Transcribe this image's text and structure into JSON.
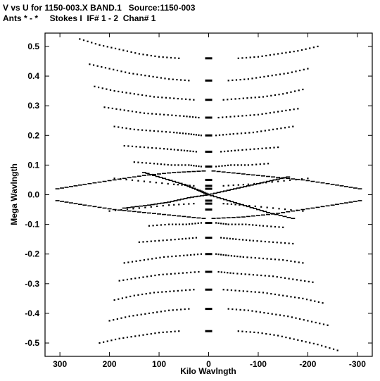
{
  "header": {
    "line1": "V vs U for 1150-003.X BAND.1   Source:1150-003",
    "line2": "Ants * - *     Stokes I  IF# 1 - 2  Chan# 1"
  },
  "chart_data": {
    "type": "scatter",
    "title": "V vs U for 1150-003.X BAND.1   Source:1150-003",
    "subtitle": "Ants * - *     Stokes I  IF# 1 - 2  Chan# 1",
    "xlabel": "Kilo Wavlngth",
    "ylabel": "Mega Wavlngth",
    "xlim": [
      330,
      -330
    ],
    "ylim": [
      -0.545,
      0.545
    ],
    "x_reversed": true,
    "x_ticks": [
      300,
      200,
      100,
      0,
      -100,
      -200,
      -300
    ],
    "x_tick_labels": [
      "300",
      "200",
      "100",
      "0",
      "-100",
      "-200",
      "-300"
    ],
    "y_ticks": [
      0.5,
      0.4,
      0.3,
      0.2,
      0.1,
      0.0,
      -0.1,
      -0.2,
      -0.3,
      -0.4,
      -0.5
    ],
    "y_tick_labels": [
      "0.5",
      "0.4",
      "0.3",
      "0.2",
      "0.1",
      "0.0",
      "-0.1",
      "-0.2",
      "-0.3",
      "-0.4",
      "-0.5"
    ],
    "grid": false,
    "marker_color": "#000000",
    "uv_tracks": {
      "wing_tracks": [
        {
          "x": [
            260,
            220,
            180,
            140,
            100,
            60
          ],
          "y": [
            0.525,
            0.505,
            0.49,
            0.475,
            0.465,
            0.46
          ]
        },
        {
          "x": [
            -60,
            -100,
            -140,
            -180,
            -220
          ],
          "y": [
            0.46,
            0.465,
            0.475,
            0.485,
            0.5
          ]
        },
        {
          "x": [
            240,
            200,
            160,
            120,
            80,
            40
          ],
          "y": [
            0.44,
            0.425,
            0.41,
            0.4,
            0.39,
            0.385
          ]
        },
        {
          "x": [
            -40,
            -80,
            -120,
            -160,
            -200
          ],
          "y": [
            0.385,
            0.39,
            0.4,
            0.41,
            0.425
          ]
        },
        {
          "x": [
            230,
            190,
            150,
            110,
            70,
            30
          ],
          "y": [
            0.365,
            0.35,
            0.34,
            0.33,
            0.325,
            0.32
          ]
        },
        {
          "x": [
            -30,
            -70,
            -110,
            -150,
            -190
          ],
          "y": [
            0.32,
            0.325,
            0.33,
            0.34,
            0.355
          ]
        },
        {
          "x": [
            210,
            170,
            130,
            90,
            50,
            20
          ],
          "y": [
            0.295,
            0.285,
            0.275,
            0.27,
            0.265,
            0.26
          ]
        },
        {
          "x": [
            -20,
            -60,
            -100,
            -140,
            -180
          ],
          "y": [
            0.26,
            0.265,
            0.27,
            0.28,
            0.29
          ]
        },
        {
          "x": [
            190,
            150,
            110,
            70,
            40,
            15
          ],
          "y": [
            0.23,
            0.22,
            0.215,
            0.21,
            0.205,
            0.2
          ]
        },
        {
          "x": [
            -15,
            -50,
            -90,
            -130,
            -170
          ],
          "y": [
            0.2,
            0.205,
            0.21,
            0.22,
            0.23
          ]
        },
        {
          "x": [
            170,
            130,
            90,
            55,
            25
          ],
          "y": [
            0.165,
            0.16,
            0.155,
            0.15,
            0.145
          ]
        },
        {
          "x": [
            -25,
            -60,
            -100,
            -140
          ],
          "y": [
            0.145,
            0.15,
            0.155,
            0.16
          ]
        },
        {
          "x": [
            150,
            110,
            75,
            40,
            15
          ],
          "y": [
            0.11,
            0.105,
            0.1,
            0.1,
            0.095
          ]
        },
        {
          "x": [
            -15,
            -45,
            -80,
            -120
          ],
          "y": [
            0.095,
            0.1,
            0.1,
            0.105
          ]
        },
        {
          "x": [
            190,
            130,
            70,
            30
          ],
          "y": [
            0.055,
            0.045,
            0.035,
            0.03
          ]
        },
        {
          "x": [
            -30,
            -80,
            -140,
            -200
          ],
          "y": [
            0.03,
            0.035,
            0.045,
            0.055
          ]
        },
        {
          "x": [
            -260,
            -220,
            -180,
            -140,
            -100,
            -60
          ],
          "y": [
            -0.525,
            -0.505,
            -0.49,
            -0.475,
            -0.465,
            -0.46
          ]
        },
        {
          "x": [
            60,
            100,
            140,
            180,
            220
          ],
          "y": [
            -0.46,
            -0.465,
            -0.475,
            -0.485,
            -0.5
          ]
        },
        {
          "x": [
            -240,
            -200,
            -160,
            -120,
            -80,
            -40
          ],
          "y": [
            -0.44,
            -0.425,
            -0.41,
            -0.4,
            -0.39,
            -0.385
          ]
        },
        {
          "x": [
            40,
            80,
            120,
            160,
            200
          ],
          "y": [
            -0.385,
            -0.39,
            -0.4,
            -0.41,
            -0.425
          ]
        },
        {
          "x": [
            -230,
            -190,
            -150,
            -110,
            -70,
            -30
          ],
          "y": [
            -0.365,
            -0.35,
            -0.34,
            -0.33,
            -0.325,
            -0.32
          ]
        },
        {
          "x": [
            30,
            70,
            110,
            150,
            190
          ],
          "y": [
            -0.32,
            -0.325,
            -0.33,
            -0.34,
            -0.355
          ]
        },
        {
          "x": [
            -210,
            -170,
            -130,
            -90,
            -50,
            -20
          ],
          "y": [
            -0.295,
            -0.285,
            -0.275,
            -0.27,
            -0.265,
            -0.26
          ]
        },
        {
          "x": [
            20,
            60,
            100,
            140,
            180
          ],
          "y": [
            -0.26,
            -0.265,
            -0.27,
            -0.28,
            -0.29
          ]
        },
        {
          "x": [
            -190,
            -150,
            -110,
            -70,
            -40,
            -15
          ],
          "y": [
            -0.23,
            -0.22,
            -0.215,
            -0.21,
            -0.205,
            -0.2
          ]
        },
        {
          "x": [
            15,
            50,
            90,
            130,
            170
          ],
          "y": [
            -0.2,
            -0.205,
            -0.21,
            -0.22,
            -0.23
          ]
        },
        {
          "x": [
            -170,
            -130,
            -90,
            -55,
            -25
          ],
          "y": [
            -0.165,
            -0.16,
            -0.155,
            -0.15,
            -0.145
          ]
        },
        {
          "x": [
            25,
            60,
            100,
            140
          ],
          "y": [
            -0.145,
            -0.15,
            -0.155,
            -0.16
          ]
        },
        {
          "x": [
            -150,
            -110,
            -75,
            -40,
            -15
          ],
          "y": [
            -0.11,
            -0.105,
            -0.1,
            -0.1,
            -0.095
          ]
        },
        {
          "x": [
            15,
            45,
            80,
            120
          ],
          "y": [
            -0.095,
            -0.1,
            -0.1,
            -0.105
          ]
        },
        {
          "x": [
            -190,
            -130,
            -70,
            -30
          ],
          "y": [
            -0.055,
            -0.045,
            -0.035,
            -0.03
          ]
        },
        {
          "x": [
            30,
            80,
            140,
            200
          ],
          "y": [
            -0.03,
            -0.035,
            -0.045,
            -0.055
          ]
        }
      ],
      "diamond_tracks": [
        {
          "x": [
            305,
            250,
            190,
            130,
            70,
            10
          ],
          "y": [
            0.02,
            0.035,
            0.05,
            0.065,
            0.075,
            0.08
          ]
        },
        {
          "x": [
            305,
            250,
            190,
            130,
            70,
            10
          ],
          "y": [
            -0.02,
            -0.035,
            -0.05,
            -0.06,
            -0.07,
            -0.08
          ]
        },
        {
          "x": [
            -10,
            -70,
            -130,
            -190,
            -250,
            -305
          ],
          "y": [
            0.08,
            0.07,
            0.06,
            0.05,
            0.035,
            0.02
          ]
        },
        {
          "x": [
            -10,
            -70,
            -130,
            -190,
            -250,
            -305
          ],
          "y": [
            -0.08,
            -0.075,
            -0.065,
            -0.05,
            -0.035,
            -0.02
          ]
        },
        {
          "x": [
            130,
            90,
            50,
            20,
            0
          ],
          "y": [
            0.075,
            0.055,
            0.035,
            0.015,
            0.0
          ]
        },
        {
          "x": [
            0,
            -40,
            -80,
            -120,
            -170
          ],
          "y": [
            0.0,
            -0.02,
            -0.04,
            -0.06,
            -0.08
          ]
        },
        {
          "x": [
            170,
            120,
            80,
            40,
            0
          ],
          "y": [
            -0.045,
            -0.035,
            -0.025,
            -0.01,
            0.0
          ]
        },
        {
          "x": [
            0,
            -40,
            -80,
            -120,
            -160
          ],
          "y": [
            0.0,
            0.015,
            0.03,
            0.045,
            0.06
          ]
        }
      ],
      "center_column": {
        "x": [
          0,
          0,
          0,
          0,
          0,
          0,
          0,
          0,
          0,
          0,
          0,
          0,
          0,
          0,
          0,
          0,
          0,
          0,
          0,
          0
        ],
        "y": [
          0.46,
          0.385,
          0.32,
          0.26,
          0.2,
          0.145,
          0.095,
          0.05,
          0.03,
          0.02,
          -0.02,
          -0.03,
          -0.05,
          -0.095,
          -0.145,
          -0.2,
          -0.26,
          -0.32,
          -0.385,
          -0.46
        ]
      }
    }
  }
}
